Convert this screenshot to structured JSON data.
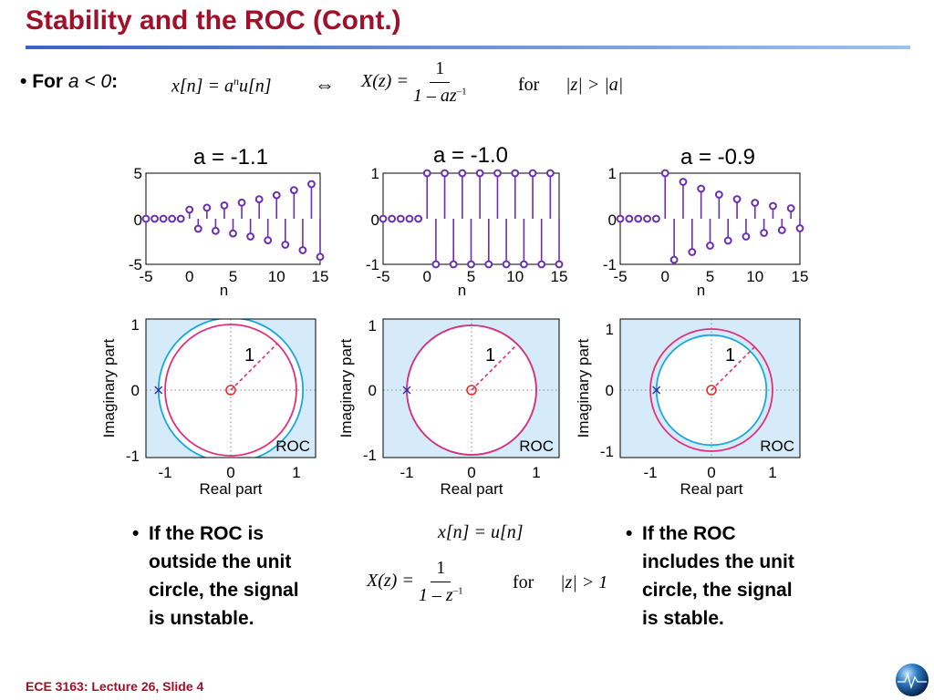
{
  "slide": {
    "title": "Stability and the ROC (Cont.)",
    "footer": "ECE 3163: Lecture 26, Slide 4"
  },
  "top_bullet": {
    "prefix": "For ",
    "condition": "a < 0",
    "suffix": ":",
    "eq_lhs": "x[n] = a",
    "eq_exp": "n",
    "eq_rhs": "u[n]",
    "iff": "⇔",
    "xz": "X(z) =",
    "num": "1",
    "den_main": "1 – az",
    "den_exp": "–1",
    "for": "for",
    "roc": "|z| > |a|"
  },
  "charts": [
    {
      "title": "a = -1.1",
      "a": -1.1,
      "yticks": [
        "5",
        "0",
        "-5"
      ],
      "ylim": [
        -5,
        5
      ]
    },
    {
      "title": "a = -1.0",
      "a": -1.0,
      "yticks": [
        "1",
        "0",
        "-1"
      ],
      "ylim": [
        -1,
        1
      ]
    },
    {
      "title": "a = -0.9",
      "a": -0.9,
      "yticks": [
        "1",
        "0",
        "-1"
      ],
      "ylim": [
        -1,
        1
      ]
    }
  ],
  "chart_data": [
    {
      "type": "scatter",
      "title": "a = -1.1",
      "xlabel": "n",
      "ylabel": "",
      "xlim": [
        -5,
        15
      ],
      "ylim": [
        -5,
        5
      ],
      "x": [
        -5,
        -4,
        -3,
        -2,
        -1,
        0,
        1,
        2,
        3,
        4,
        5,
        6,
        7,
        8,
        9,
        10,
        11,
        12,
        13,
        14,
        15
      ],
      "y": [
        0,
        0,
        0,
        0,
        0,
        1,
        -1.1,
        1.21,
        -1.33,
        1.46,
        -1.61,
        1.77,
        -1.95,
        2.14,
        -2.36,
        2.59,
        -2.85,
        3.14,
        -3.45,
        3.8,
        -4.18
      ]
    },
    {
      "type": "scatter",
      "title": "a = -1.0",
      "xlabel": "n",
      "ylabel": "",
      "xlim": [
        -5,
        15
      ],
      "ylim": [
        -1,
        1
      ],
      "x": [
        -5,
        -4,
        -3,
        -2,
        -1,
        0,
        1,
        2,
        3,
        4,
        5,
        6,
        7,
        8,
        9,
        10,
        11,
        12,
        13,
        14,
        15
      ],
      "y": [
        0,
        0,
        0,
        0,
        0,
        1,
        -1,
        1,
        -1,
        1,
        -1,
        1,
        -1,
        1,
        -1,
        1,
        -1,
        1,
        -1,
        1,
        -1
      ]
    },
    {
      "type": "scatter",
      "title": "a = -0.9",
      "xlabel": "n",
      "ylabel": "",
      "xlim": [
        -5,
        15
      ],
      "ylim": [
        -1,
        1
      ],
      "x": [
        -5,
        -4,
        -3,
        -2,
        -1,
        0,
        1,
        2,
        3,
        4,
        5,
        6,
        7,
        8,
        9,
        10,
        11,
        12,
        13,
        14,
        15
      ],
      "y": [
        0,
        0,
        0,
        0,
        0,
        1,
        -0.9,
        0.81,
        -0.73,
        0.66,
        -0.59,
        0.53,
        -0.48,
        0.43,
        -0.39,
        0.35,
        -0.31,
        0.28,
        -0.25,
        0.23,
        -0.21
      ]
    }
  ],
  "stem_axes": {
    "xticks": [
      "-5",
      "0",
      "5",
      "10",
      "15"
    ],
    "xlabel": "n"
  },
  "pz_plots": [
    {
      "pole": -1.1,
      "radius_label": "1",
      "roc_label": "ROC"
    },
    {
      "pole": -1.0,
      "radius_label": "1",
      "roc_label": "ROC"
    },
    {
      "pole": -0.9,
      "radius_label": "1",
      "roc_label": "ROC"
    }
  ],
  "pz_axes": {
    "xlabel": "Real part",
    "ylabel": "Imaginary part",
    "xticks": [
      "-1",
      "0",
      "1"
    ],
    "yticks": [
      "1",
      "0",
      "-1"
    ]
  },
  "notes": {
    "left": [
      "If the ROC is",
      "outside the unit",
      "circle, the signal",
      "is unstable."
    ],
    "right": [
      "If the ROC",
      "includes the unit",
      "circle, the signal",
      "is stable."
    ]
  },
  "center_math": {
    "eq1": "x[n] = u[n]",
    "xz": "X(z) =",
    "num": "1",
    "den_main": "1 – z",
    "den_exp": "–1",
    "for": "for",
    "roc": "|z| > 1"
  },
  "colors": {
    "title": "#a0102a",
    "stem": "#6a2fb0",
    "unit_circle": "#e0307a",
    "roc_circle": "#19a7dd",
    "roc_fill": "#d6ebfa",
    "pole": "#2a2aa8",
    "zero": "#e03030"
  }
}
